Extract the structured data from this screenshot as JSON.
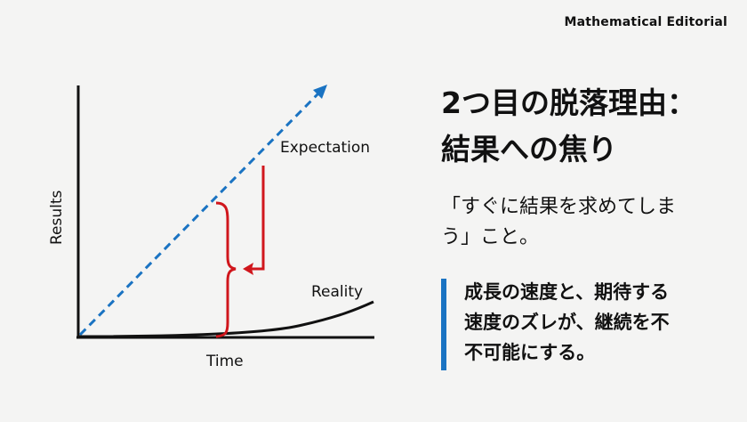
{
  "header": {
    "brand": "Mathematical Editorial"
  },
  "diagram": {
    "y_axis_label": "Results",
    "x_axis_label": "Time",
    "expectation_label": "Expectation",
    "reality_label": "Reality",
    "colors": {
      "expectation": "#1a73c2",
      "reality": "#111111",
      "gap": "#d0161c"
    }
  },
  "slide": {
    "title": "2つ目の脱落理由：\n結果への焦り",
    "body": "「すぐに結果を求めてしま\nう」こと。",
    "callout": "成長の速度と、期待する\n速度のズレが、継続を不\n不可能にする。",
    "callout_color": "#1a73c2"
  }
}
